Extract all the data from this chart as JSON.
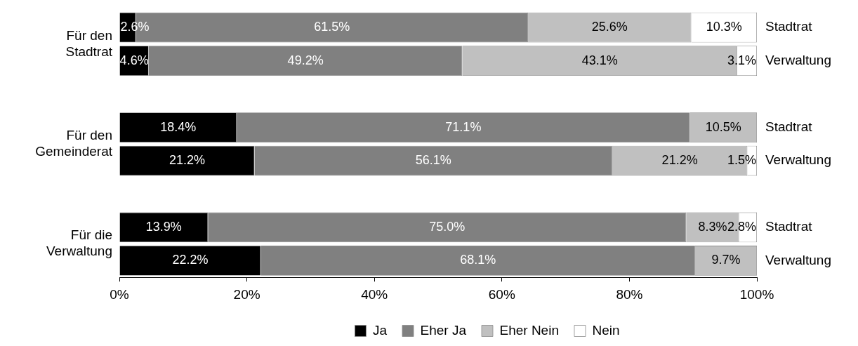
{
  "chart_data": {
    "type": "bar",
    "orientation": "horizontal",
    "stacked": true,
    "categories": [
      "Stadtrat",
      "Verwaltung",
      "Stadtrat",
      "Verwaltung",
      "Stadtrat",
      "Verwaltung"
    ],
    "annotations": [
      "Für den Stadtrat",
      "Für den Gemeinderat",
      "Für die Verwaltung"
    ],
    "series": [
      {
        "name": "Ja",
        "color": "#000000",
        "values": [
          2.6,
          4.6,
          18.4,
          21.2,
          13.9,
          22.2
        ],
        "value_labels": [
          "2.6%",
          "4.6%",
          "18.4%",
          "21.2%",
          "13.9%",
          "22.2%"
        ]
      },
      {
        "name": "Eher Ja",
        "color": "#808080",
        "values": [
          61.5,
          49.2,
          71.1,
          56.1,
          75.0,
          68.1
        ],
        "value_labels": [
          "61.5%",
          "49.2%",
          "71.1%",
          "56.1%",
          "75.0%",
          "68.1%"
        ]
      },
      {
        "name": "Eher Nein",
        "color": "#c0c0c0",
        "values": [
          25.6,
          43.1,
          10.5,
          21.2,
          8.3,
          9.7
        ],
        "value_labels": [
          "25.6%",
          "43.1%",
          "10.5%",
          "21.2%",
          "8.3%",
          "9.7%"
        ]
      },
      {
        "name": "Nein",
        "color": "#ffffff",
        "values": [
          10.3,
          3.1,
          null,
          1.5,
          2.8,
          null
        ],
        "value_labels": [
          "10.3%",
          "3.1%",
          null,
          "1.5%",
          "2.8%",
          null
        ]
      }
    ],
    "xlim": [
      0,
      100
    ],
    "xticks": [
      {
        "value": 0,
        "label": "0%"
      },
      {
        "value": 20,
        "label": "20%"
      },
      {
        "value": 40,
        "label": "40%"
      },
      {
        "value": 60,
        "label": "60%"
      },
      {
        "value": 80,
        "label": "80%"
      },
      {
        "value": 100,
        "label": "100%"
      }
    ],
    "grid": false,
    "legend": "bottom"
  }
}
